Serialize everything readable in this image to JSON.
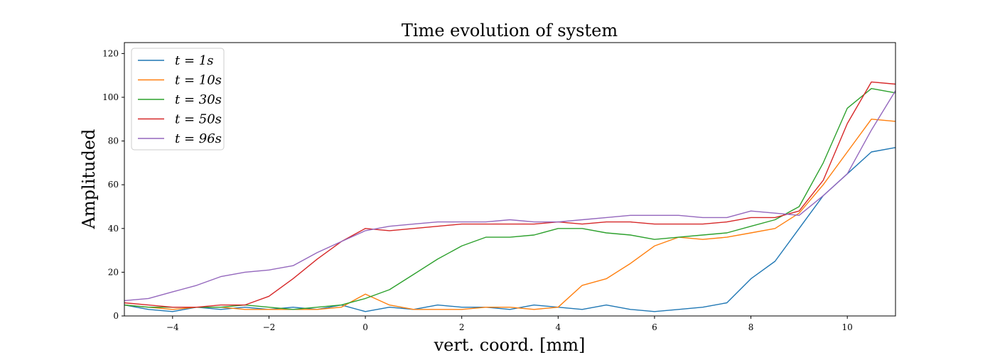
{
  "chart_data": {
    "type": "line",
    "title": "Time evolution of system",
    "xlabel": "vert. coord. [mm]",
    "ylabel": "Amplituded",
    "xlim": [
      -5,
      11
    ],
    "ylim": [
      0,
      125
    ],
    "xticks": [
      -4,
      -2,
      0,
      2,
      4,
      6,
      8,
      10
    ],
    "yticks": [
      0,
      20,
      40,
      60,
      80,
      100,
      120
    ],
    "grid": false,
    "legend_position": "top-left",
    "x": [
      -5,
      -4.5,
      -4,
      -3.5,
      -3,
      -2.5,
      -2,
      -1.5,
      -1,
      -0.5,
      0,
      0.5,
      1,
      1.5,
      2,
      2.5,
      3,
      3.5,
      4,
      4.5,
      5,
      5.5,
      6,
      6.5,
      7,
      7.5,
      8,
      8.5,
      9,
      9.5,
      10,
      10.5,
      11
    ],
    "series": [
      {
        "name": "t = 1s",
        "label_main": "t",
        "label_value": "1s",
        "color": "#1f77b4",
        "values": [
          5,
          3,
          2,
          4,
          3,
          4,
          3,
          4,
          3,
          5,
          2,
          4,
          3,
          5,
          4,
          4,
          3,
          5,
          4,
          3,
          5,
          3,
          2,
          3,
          4,
          6,
          17,
          25,
          40,
          55,
          65,
          75,
          77
        ]
      },
      {
        "name": "t = 10s",
        "label_main": "t",
        "label_value": "10s",
        "color": "#ff7f0e",
        "values": [
          5,
          4,
          3,
          4,
          4,
          3,
          3,
          3,
          3,
          4,
          10,
          5,
          3,
          3,
          3,
          4,
          4,
          3,
          4,
          14,
          17,
          24,
          32,
          36,
          35,
          36,
          38,
          40,
          47,
          60,
          75,
          90,
          89
        ]
      },
      {
        "name": "t = 30s",
        "label_main": "t",
        "label_value": "30s",
        "color": "#2ca02c",
        "values": [
          5,
          4,
          4,
          4,
          4,
          5,
          4,
          3,
          4,
          5,
          8,
          12,
          19,
          26,
          32,
          36,
          36,
          37,
          40,
          40,
          38,
          37,
          35,
          36,
          37,
          38,
          41,
          44,
          50,
          70,
          95,
          104,
          102
        ]
      },
      {
        "name": "t = 50s",
        "label_main": "t",
        "label_value": "50s",
        "color": "#d62728",
        "values": [
          6,
          5,
          4,
          4,
          5,
          5,
          9,
          17,
          26,
          34,
          40,
          39,
          40,
          41,
          42,
          42,
          42,
          42,
          43,
          42,
          43,
          43,
          42,
          42,
          42,
          43,
          45,
          45,
          48,
          62,
          88,
          107,
          106
        ]
      },
      {
        "name": "t = 96s",
        "label_main": "t",
        "label_value": "96s",
        "color": "#9467bd",
        "values": [
          7,
          8,
          11,
          14,
          18,
          20,
          21,
          23,
          29,
          34,
          39,
          41,
          42,
          43,
          43,
          43,
          44,
          43,
          43,
          44,
          45,
          46,
          46,
          46,
          45,
          45,
          48,
          47,
          46,
          55,
          65,
          85,
          103
        ]
      }
    ]
  }
}
